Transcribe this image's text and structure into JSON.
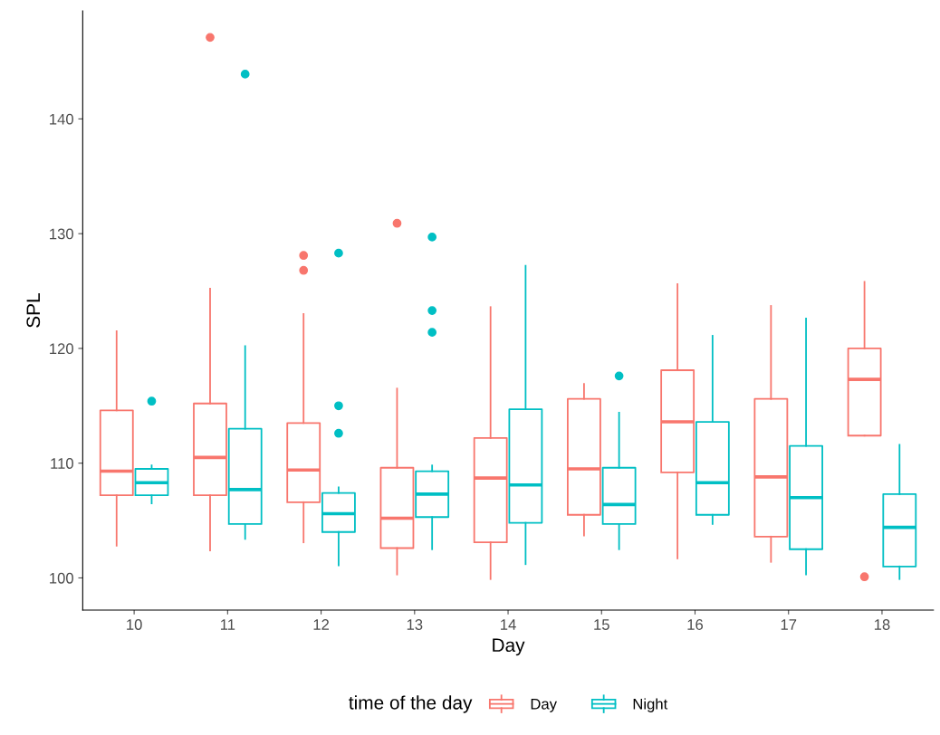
{
  "chart_data": {
    "type": "box",
    "xlabel": "Day",
    "ylabel": "SPL",
    "legend_title": "time of the day",
    "legend": "bottom",
    "grid": false,
    "categories": [
      "10",
      "11",
      "12",
      "13",
      "14",
      "15",
      "16",
      "17",
      "18"
    ],
    "ylim": [
      97.2,
      149.4
    ],
    "yticks": [
      100,
      110,
      120,
      130,
      140
    ],
    "series": [
      {
        "name": "Day",
        "color": "#f8766d",
        "boxes": [
          {
            "low": 102.8,
            "q1": 107.2,
            "median": 109.3,
            "q3": 114.6,
            "high": 121.5
          },
          {
            "low": 102.4,
            "q1": 107.2,
            "median": 110.5,
            "q3": 115.2,
            "high": 125.2,
            "outliers": [
              147.1
            ]
          },
          {
            "low": 103.1,
            "q1": 106.6,
            "median": 109.4,
            "q3": 113.5,
            "high": 123.0,
            "outliers": [
              128.1,
              126.8
            ]
          },
          {
            "low": 100.3,
            "q1": 102.6,
            "median": 105.2,
            "q3": 109.6,
            "high": 116.5,
            "outliers": [
              130.9
            ]
          },
          {
            "low": 99.9,
            "q1": 103.1,
            "median": 108.7,
            "q3": 112.2,
            "high": 123.6
          },
          {
            "low": 103.7,
            "q1": 105.5,
            "median": 109.5,
            "q3": 115.6,
            "high": 116.9
          },
          {
            "low": 101.7,
            "q1": 109.2,
            "median": 113.6,
            "q3": 118.1,
            "high": 125.6
          },
          {
            "low": 101.4,
            "q1": 103.6,
            "median": 108.8,
            "q3": 115.6,
            "high": 123.7
          },
          {
            "low": 112.4,
            "q1": 112.4,
            "median": 117.3,
            "q3": 120.0,
            "high": 125.8,
            "outliers": [
              100.1
            ]
          }
        ]
      },
      {
        "name": "Night",
        "color": "#00bfc4",
        "boxes": [
          {
            "low": 106.5,
            "q1": 107.2,
            "median": 108.3,
            "q3": 109.5,
            "high": 109.8,
            "outliers": [
              115.4
            ]
          },
          {
            "low": 103.4,
            "q1": 104.7,
            "median": 107.7,
            "q3": 113.0,
            "high": 120.2,
            "outliers": [
              143.9
            ]
          },
          {
            "low": 101.1,
            "q1": 104.0,
            "median": 105.6,
            "q3": 107.4,
            "high": 107.9,
            "outliers": [
              128.3,
              115.0,
              112.6
            ]
          },
          {
            "low": 102.5,
            "q1": 105.3,
            "median": 107.3,
            "q3": 109.3,
            "high": 109.8,
            "outliers": [
              129.7,
              123.3,
              121.4
            ]
          },
          {
            "low": 101.2,
            "q1": 104.8,
            "median": 108.1,
            "q3": 114.7,
            "high": 127.2
          },
          {
            "low": 102.5,
            "q1": 104.7,
            "median": 106.4,
            "q3": 109.6,
            "high": 114.4,
            "outliers": [
              117.6
            ]
          },
          {
            "low": 104.7,
            "q1": 105.5,
            "median": 108.3,
            "q3": 113.6,
            "high": 121.1
          },
          {
            "low": 100.3,
            "q1": 102.5,
            "median": 107.0,
            "q3": 111.5,
            "high": 122.6
          },
          {
            "low": 99.9,
            "q1": 101.0,
            "median": 104.4,
            "q3": 107.3,
            "high": 111.6
          }
        ]
      }
    ]
  }
}
